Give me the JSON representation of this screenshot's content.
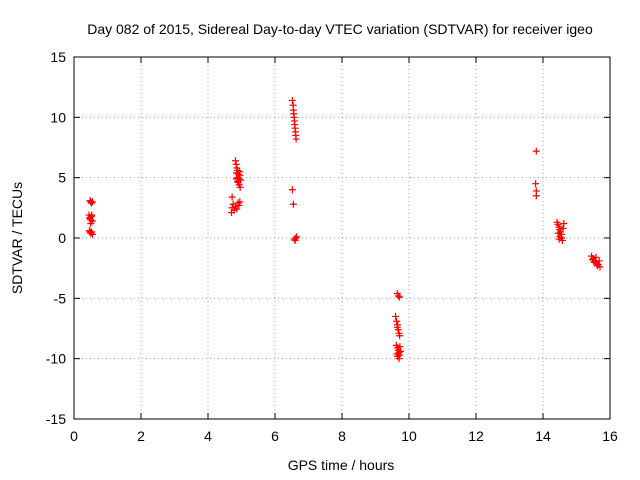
{
  "chart_data": {
    "type": "scatter",
    "title": "Day 082 of 2015, Sidereal Day-to-day VTEC variation (SDTVAR) for receiver igeo",
    "xlabel": "GPS time / hours",
    "ylabel": "SDTVAR / TECUs",
    "xlim": [
      0,
      16
    ],
    "ylim": [
      -15,
      15
    ],
    "xticks": [
      0,
      2,
      4,
      6,
      8,
      10,
      12,
      14,
      16
    ],
    "yticks": [
      -15,
      -10,
      -5,
      0,
      5,
      10,
      15
    ],
    "grid": true,
    "marker": "+",
    "color": "#ff0000",
    "series": [
      {
        "name": "SDTVAR",
        "points": [
          [
            0.48,
            3.1
          ],
          [
            0.5,
            3.0
          ],
          [
            0.52,
            2.9
          ],
          [
            0.55,
            3.0
          ],
          [
            0.45,
            1.9
          ],
          [
            0.48,
            1.7
          ],
          [
            0.5,
            1.5
          ],
          [
            0.52,
            1.8
          ],
          [
            0.55,
            1.4
          ],
          [
            0.5,
            1.2
          ],
          [
            0.47,
            1.6
          ],
          [
            0.53,
            1.9
          ],
          [
            0.46,
            0.6
          ],
          [
            0.5,
            0.4
          ],
          [
            0.52,
            0.5
          ],
          [
            0.55,
            0.3
          ],
          [
            0.48,
            0.5
          ],
          [
            4.72,
            3.4
          ],
          [
            4.75,
            2.8
          ],
          [
            4.72,
            2.5
          ],
          [
            4.7,
            2.1
          ],
          [
            4.78,
            2.3
          ],
          [
            4.82,
            2.6
          ],
          [
            4.86,
            2.4
          ],
          [
            4.9,
            2.9
          ],
          [
            4.95,
            3.0
          ],
          [
            4.92,
            2.7
          ],
          [
            4.82,
            6.4
          ],
          [
            4.84,
            6.1
          ],
          [
            4.86,
            5.8
          ],
          [
            4.88,
            5.6
          ],
          [
            4.85,
            5.4
          ],
          [
            4.9,
            5.3
          ],
          [
            4.87,
            5.0
          ],
          [
            4.92,
            4.9
          ],
          [
            4.95,
            5.2
          ],
          [
            4.9,
            4.6
          ],
          [
            4.93,
            4.4
          ],
          [
            4.96,
            4.2
          ],
          [
            4.88,
            4.7
          ],
          [
            4.85,
            4.9
          ],
          [
            4.98,
            4.8
          ],
          [
            4.94,
            5.5
          ],
          [
            6.52,
            11.4
          ],
          [
            6.54,
            11.0
          ],
          [
            6.55,
            10.6
          ],
          [
            6.56,
            10.3
          ],
          [
            6.57,
            10.0
          ],
          [
            6.58,
            9.7
          ],
          [
            6.59,
            9.4
          ],
          [
            6.6,
            9.1
          ],
          [
            6.61,
            8.8
          ],
          [
            6.62,
            8.5
          ],
          [
            6.63,
            8.2
          ],
          [
            6.52,
            4.0
          ],
          [
            6.55,
            2.8
          ],
          [
            6.58,
            -0.1
          ],
          [
            6.62,
            0.0
          ],
          [
            6.65,
            0.1
          ],
          [
            6.6,
            -0.2
          ],
          [
            9.65,
            -4.6
          ],
          [
            9.68,
            -4.8
          ],
          [
            9.72,
            -4.9
          ],
          [
            9.6,
            -6.5
          ],
          [
            9.63,
            -6.9
          ],
          [
            9.66,
            -7.2
          ],
          [
            9.68,
            -7.6
          ],
          [
            9.7,
            -7.9
          ],
          [
            9.72,
            -8.1
          ],
          [
            9.65,
            -7.4
          ],
          [
            9.62,
            -8.9
          ],
          [
            9.65,
            -9.1
          ],
          [
            9.68,
            -9.3
          ],
          [
            9.7,
            -9.5
          ],
          [
            9.72,
            -9.7
          ],
          [
            9.75,
            -9.4
          ],
          [
            9.66,
            -9.8
          ],
          [
            9.7,
            -10.0
          ],
          [
            9.64,
            -9.6
          ],
          [
            9.73,
            -9.0
          ],
          [
            13.8,
            7.2
          ],
          [
            13.78,
            4.5
          ],
          [
            13.8,
            3.9
          ],
          [
            13.8,
            3.5
          ],
          [
            14.42,
            1.3
          ],
          [
            14.45,
            1.1
          ],
          [
            14.48,
            0.9
          ],
          [
            14.5,
            0.7
          ],
          [
            14.52,
            0.5
          ],
          [
            14.55,
            0.3
          ],
          [
            14.5,
            0.1
          ],
          [
            14.48,
            -0.1
          ],
          [
            14.55,
            0.0
          ],
          [
            14.6,
            0.8
          ],
          [
            14.62,
            1.2
          ],
          [
            14.45,
            0.4
          ],
          [
            14.58,
            -0.2
          ],
          [
            15.45,
            -1.5
          ],
          [
            15.5,
            -1.7
          ],
          [
            15.55,
            -1.9
          ],
          [
            15.6,
            -2.1
          ],
          [
            15.65,
            -2.2
          ],
          [
            15.7,
            -2.4
          ],
          [
            15.52,
            -2.0
          ],
          [
            15.58,
            -1.6
          ],
          [
            15.62,
            -2.3
          ],
          [
            15.48,
            -1.8
          ],
          [
            15.68,
            -1.9
          ]
        ]
      }
    ]
  }
}
